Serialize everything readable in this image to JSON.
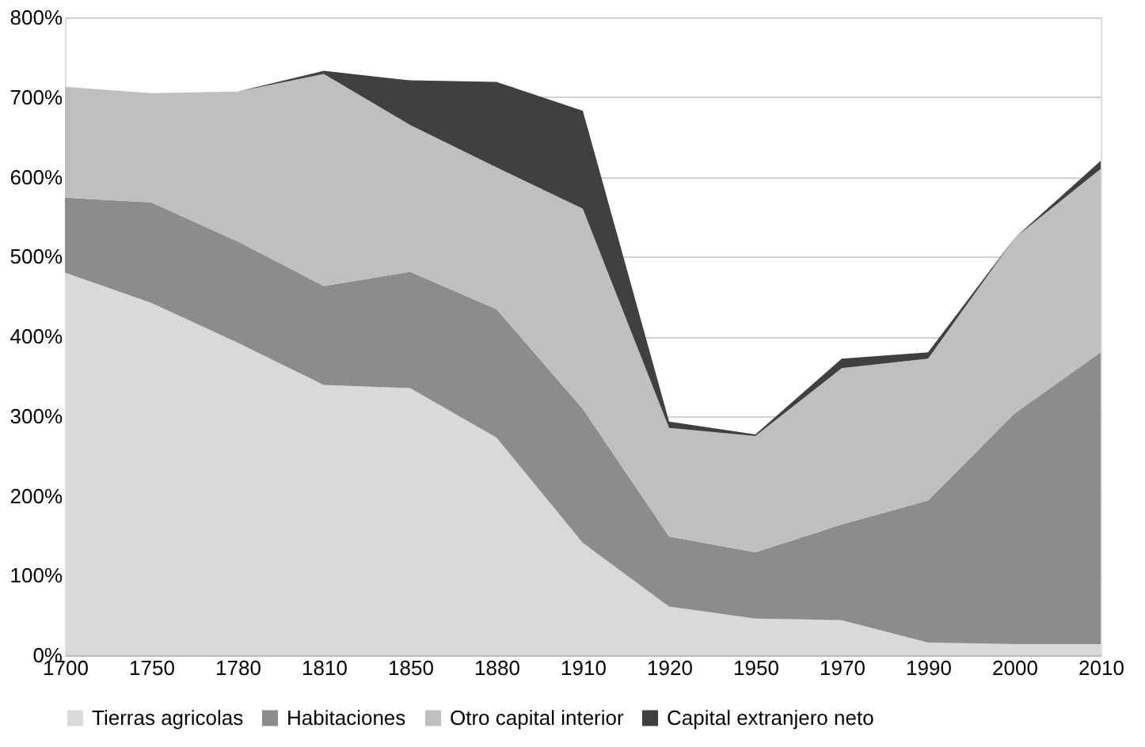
{
  "chart_data": {
    "type": "area",
    "stacked": true,
    "categories": [
      "1700",
      "1750",
      "1780",
      "1810",
      "1850",
      "1880",
      "1910",
      "1920",
      "1950",
      "1970",
      "1990",
      "2000",
      "2010"
    ],
    "series": [
      {
        "name": "Tierras agricolas",
        "color": "#d9d9d9",
        "values": [
          480,
          442,
          392,
          339,
          335,
          273,
          141,
          61,
          46,
          44,
          16,
          14,
          14
        ]
      },
      {
        "name": "Habitaciones",
        "color": "#8c8c8c",
        "values": [
          94,
          126,
          127,
          124,
          146,
          161,
          168,
          88,
          83,
          120,
          178,
          289,
          366
        ]
      },
      {
        "name": "Otro capital interior",
        "color": "#bfbfbf",
        "values": [
          139,
          137,
          188,
          266,
          184,
          178,
          251,
          136,
          146,
          196,
          178,
          220,
          230
        ]
      },
      {
        "name": "Capital extranjero neto",
        "color": "#404040",
        "values": [
          0,
          0,
          0,
          4,
          56,
          107,
          123,
          8,
          2,
          12,
          8,
          0,
          10
        ]
      }
    ],
    "ylim": [
      0,
      800
    ],
    "yticks": [
      {
        "value": 0,
        "label": "0%"
      },
      {
        "value": 100,
        "label": "100%"
      },
      {
        "value": 200,
        "label": "200%"
      },
      {
        "value": 300,
        "label": "300%"
      },
      {
        "value": 400,
        "label": "400%"
      },
      {
        "value": 500,
        "label": "500%"
      },
      {
        "value": 600,
        "label": "600%"
      },
      {
        "value": 700,
        "label": "700%"
      },
      {
        "value": 800,
        "label": "800%"
      }
    ],
    "grid": "y",
    "legend": "bottom"
  }
}
